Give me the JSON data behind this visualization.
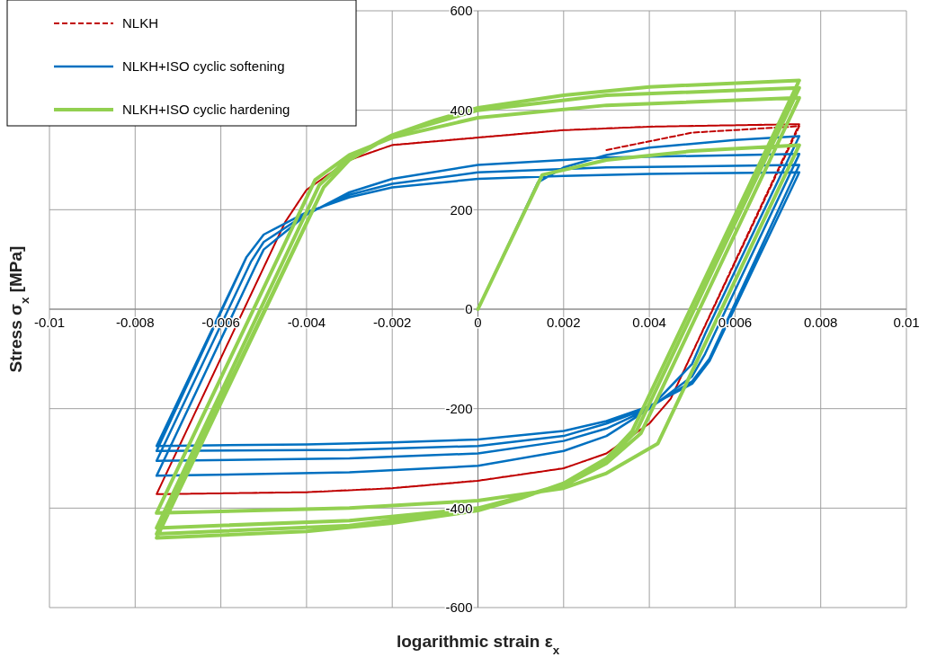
{
  "chart_data": {
    "type": "line",
    "xlabel": "logarithmic strain ε$_{x}$",
    "ylabel": "Stress σ$_{x}$ [MPa]",
    "xlim": [
      -0.01,
      0.01
    ],
    "xticks": [
      -0.01,
      -0.008,
      -0.006,
      -0.004,
      -0.002,
      0,
      0.002,
      0.004,
      0.006,
      0.008,
      0.01
    ],
    "ylim": [
      -600,
      600
    ],
    "yticks": [
      -600,
      -400,
      -200,
      0,
      200,
      400,
      600
    ],
    "grid": true,
    "legend": "top left",
    "series": [
      {
        "name": "NLKH",
        "color": "#c00000",
        "line_style": "dashed",
        "x": [
          0.003,
          0.005,
          0.0075,
          0.0045,
          0.004,
          0.003,
          0.002,
          0,
          -0.002,
          -0.004,
          -0.0075,
          -0.0045,
          -0.004,
          -0.003,
          -0.002,
          0,
          0.002,
          0.004,
          0.0075,
          0.0045,
          0.004,
          0.003,
          0.002,
          0,
          -0.002,
          -0.004,
          -0.0075,
          -0.0045,
          -0.004,
          -0.003,
          -0.002,
          0,
          0.002,
          0.004,
          0.0075
        ],
        "values": [
          320,
          355,
          368,
          -180,
          -230,
          -290,
          -320,
          -345,
          -360,
          -368,
          -372,
          175,
          240,
          300,
          330,
          345,
          360,
          367,
          372,
          -180,
          -230,
          -290,
          -320,
          -345,
          -360,
          -368,
          -372,
          175,
          240,
          300,
          330,
          345,
          360,
          367,
          372
        ]
      },
      {
        "name": "NLKH+ISO cyclic softening",
        "color": "#0070c0",
        "line_style": "solid",
        "x": [
          0,
          0.0014,
          0.002,
          0.003,
          0.004,
          0.006,
          0.0075,
          0.0053,
          0.005,
          0.004,
          0.003,
          0.002,
          0,
          -0.003,
          -0.0075,
          -0.0052,
          -0.005,
          -0.004,
          -0.003,
          -0.002,
          0,
          0.003,
          0.0075,
          0.0053,
          0.005,
          0.004,
          0.003,
          0.002,
          0,
          -0.003,
          -0.0075,
          -0.0053,
          -0.005,
          -0.004,
          -0.003,
          -0.002,
          0,
          0.003,
          0.0075,
          0.0054,
          0.005,
          0.004,
          0.003,
          0.002,
          0,
          -0.003,
          -0.0075,
          -0.0054,
          -0.005,
          -0.004,
          -0.003,
          -0.002,
          0,
          0.002,
          0.004,
          0.0075,
          0.0054,
          0.005,
          0.004,
          0.003,
          0.002,
          0,
          -0.002,
          -0.004,
          -0.0075,
          -0.0054,
          -0.005,
          -0.004,
          -0.003,
          -0.002,
          0,
          0.002,
          0.004,
          0.0075
        ],
        "values": [
          0,
          255,
          285,
          310,
          325,
          340,
          348,
          -50,
          -110,
          -200,
          -255,
          -285,
          -315,
          -328,
          -335,
          85,
          120,
          190,
          235,
          262,
          290,
          305,
          312,
          -90,
          -135,
          -200,
          -240,
          -265,
          -290,
          -300,
          -305,
          95,
          135,
          192,
          230,
          252,
          275,
          285,
          290,
          -100,
          -145,
          -198,
          -230,
          -255,
          -275,
          -283,
          -285,
          105,
          150,
          195,
          225,
          245,
          262,
          268,
          272,
          275,
          -105,
          -150,
          -195,
          -225,
          -245,
          -262,
          -268,
          -272,
          -275,
          105,
          150,
          195,
          225,
          245,
          262,
          268,
          272,
          275
        ]
      },
      {
        "name": "NLKH+ISO cyclic hardening",
        "color": "#92d050",
        "line_style": "solid",
        "x": [
          0,
          0.0015,
          0.003,
          0.005,
          0.0075,
          0.0042,
          0.003,
          0.002,
          0,
          -0.003,
          -0.0075,
          -0.0038,
          -0.003,
          -0.002,
          0,
          0.003,
          0.0075,
          0.0038,
          0.003,
          0.002,
          0,
          -0.003,
          -0.0075,
          -0.0037,
          -0.003,
          -0.002,
          0,
          0.003,
          0.0075,
          0.0037,
          0.003,
          0.002,
          0,
          -0.003,
          -0.0075,
          -0.0036,
          -0.003,
          -0.002,
          -0.001,
          0,
          0.002,
          0.004,
          0.0075,
          0.0036,
          0.003,
          0.002,
          0.001,
          0,
          -0.002,
          -0.004,
          -0.0075,
          -0.0036,
          -0.003,
          -0.002,
          -0.001,
          0,
          0.002,
          0.004,
          0.0075
        ],
        "values": [
          0,
          270,
          300,
          318,
          330,
          -270,
          -330,
          -360,
          -385,
          -400,
          -410,
          260,
          310,
          345,
          385,
          410,
          425,
          -250,
          -310,
          -355,
          -400,
          -425,
          -440,
          250,
          305,
          350,
          400,
          430,
          445,
          -245,
          -305,
          -352,
          -402,
          -435,
          -452,
          245,
          300,
          350,
          380,
          405,
          430,
          447,
          460,
          -245,
          -300,
          -350,
          -380,
          -405,
          -430,
          -447,
          -460,
          245,
          300,
          350,
          380,
          405,
          430,
          447,
          460
        ]
      }
    ]
  }
}
